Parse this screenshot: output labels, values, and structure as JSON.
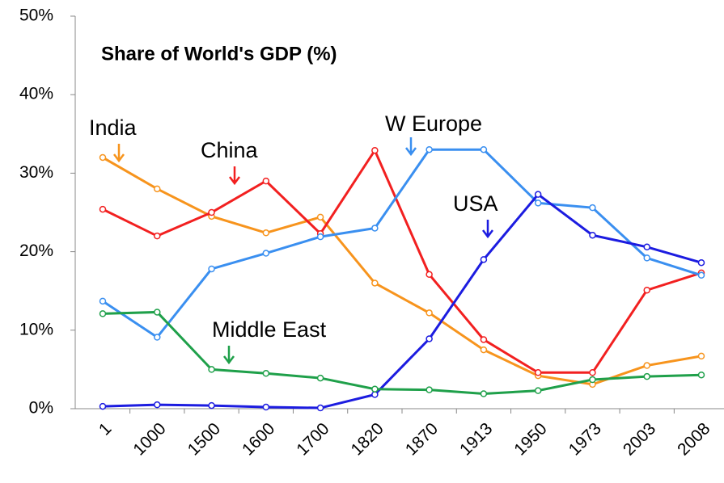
{
  "chart_data": {
    "type": "line",
    "title": "Share of World's GDP (%)",
    "categories": [
      "1",
      "1000",
      "1500",
      "1600",
      "1700",
      "1820",
      "1870",
      "1913",
      "1950",
      "1973",
      "2003",
      "2008"
    ],
    "series": [
      {
        "name": "India",
        "color": "#f7941d",
        "values": [
          32,
          28,
          24.5,
          22.4,
          24.4,
          16,
          12.2,
          7.5,
          4.2,
          3.1,
          5.5,
          6.7
        ]
      },
      {
        "name": "China",
        "color": "#f22020",
        "values": [
          25.4,
          22,
          25,
          29,
          22.3,
          32.9,
          17.1,
          8.8,
          4.6,
          4.6,
          15.1,
          17.3
        ]
      },
      {
        "name": "W Europe",
        "color": "#3a8ff0",
        "values": [
          13.7,
          9.1,
          17.8,
          19.8,
          21.9,
          23,
          33,
          33,
          26.2,
          25.6,
          19.2,
          17
        ]
      },
      {
        "name": "USA",
        "color": "#1c1ce0",
        "values": [
          0.3,
          0.5,
          0.4,
          0.2,
          0.1,
          1.8,
          8.9,
          19,
          27.3,
          22.1,
          20.6,
          18.6
        ]
      },
      {
        "name": "Middle East",
        "color": "#1fa04a",
        "values": [
          12.1,
          12.3,
          5,
          4.5,
          3.9,
          2.5,
          2.4,
          1.9,
          2.3,
          3.7,
          4.1,
          4.3
        ]
      }
    ],
    "ylim": [
      0,
      50
    ],
    "yticks": [
      {
        "value": 0,
        "label": "0%"
      },
      {
        "value": 10,
        "label": "10%"
      },
      {
        "value": 20,
        "label": "20%"
      },
      {
        "value": 30,
        "label": "30%"
      },
      {
        "value": 40,
        "label": "40%"
      },
      {
        "value": 50,
        "label": "50%"
      }
    ],
    "grid": false
  }
}
